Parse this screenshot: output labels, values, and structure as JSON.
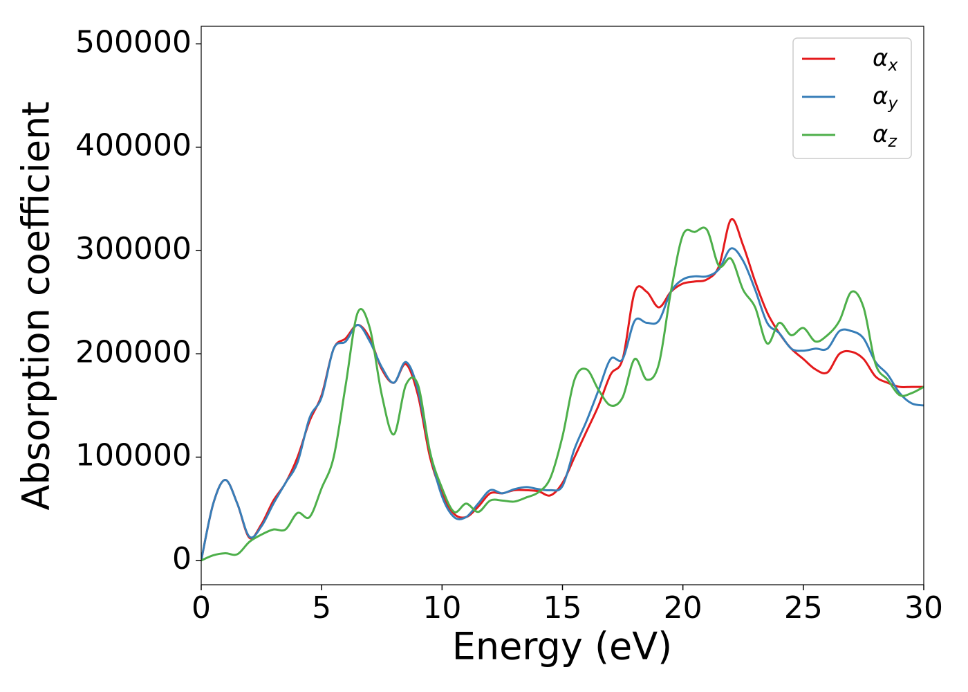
{
  "chart_data": {
    "type": "line",
    "xlabel": "Energy (eV)",
    "ylabel": "Absorption coefficient",
    "xlim": [
      0,
      30
    ],
    "ylim": [
      -23500,
      517000
    ],
    "xticks": [
      0,
      5,
      10,
      15,
      20,
      25,
      30
    ],
    "yticks": [
      0,
      100000,
      200000,
      300000,
      400000,
      500000
    ],
    "legend": "upper right",
    "x": [
      0,
      0.5,
      1,
      1.5,
      2,
      2.5,
      3,
      3.5,
      4,
      4.5,
      5,
      5.5,
      6,
      6.5,
      7,
      7.5,
      8,
      8.5,
      9,
      9.5,
      10,
      10.5,
      11,
      11.5,
      12,
      12.5,
      13,
      13.5,
      14,
      14.5,
      15,
      15.5,
      16,
      16.5,
      17,
      17.5,
      18,
      18.5,
      19,
      19.5,
      20,
      20.5,
      21,
      21.5,
      22,
      22.5,
      23,
      23.5,
      24,
      24.5,
      25,
      25.5,
      26,
      26.5,
      27,
      27.5,
      28,
      28.5,
      29,
      29.5,
      30
    ],
    "series": [
      {
        "name": "αx",
        "color": "#e41a1c",
        "values": [
          0,
          55000,
          78000,
          55000,
          22000,
          35000,
          58000,
          75000,
          100000,
          135000,
          160000,
          205000,
          215000,
          228000,
          215000,
          185000,
          172000,
          190000,
          160000,
          100000,
          65000,
          45000,
          42000,
          52000,
          65000,
          65000,
          68000,
          68000,
          67000,
          63000,
          75000,
          100000,
          125000,
          150000,
          180000,
          195000,
          260000,
          260000,
          245000,
          260000,
          268000,
          270000,
          272000,
          285000,
          330000,
          305000,
          270000,
          240000,
          220000,
          205000,
          195000,
          185000,
          182000,
          200000,
          202000,
          195000,
          178000,
          172000,
          168000,
          168000,
          168000
        ]
      },
      {
        "name": "αy",
        "color": "#377eb8",
        "values": [
          0,
          55000,
          78000,
          55000,
          23000,
          33000,
          55000,
          75000,
          95000,
          138000,
          158000,
          205000,
          212000,
          228000,
          212000,
          187000,
          172000,
          192000,
          165000,
          105000,
          62000,
          42000,
          42000,
          55000,
          68000,
          65000,
          69000,
          71000,
          69000,
          68000,
          72000,
          108000,
          135000,
          165000,
          195000,
          195000,
          232000,
          230000,
          232000,
          260000,
          272000,
          275000,
          275000,
          282000,
          302000,
          290000,
          262000,
          230000,
          220000,
          205000,
          203000,
          205000,
          205000,
          222000,
          222000,
          215000,
          192000,
          180000,
          162000,
          152000,
          150000
        ]
      },
      {
        "name": "αz",
        "color": "#4daf4a",
        "values": [
          0,
          5000,
          7000,
          6000,
          18000,
          25000,
          30000,
          30000,
          46000,
          42000,
          70000,
          100000,
          170000,
          240000,
          225000,
          160000,
          122000,
          170000,
          170000,
          105000,
          70000,
          47000,
          55000,
          47000,
          58000,
          58000,
          57000,
          61000,
          66000,
          80000,
          120000,
          175000,
          185000,
          165000,
          150000,
          158000,
          195000,
          175000,
          190000,
          260000,
          315000,
          318000,
          320000,
          285000,
          292000,
          262000,
          245000,
          210000,
          230000,
          218000,
          225000,
          212000,
          218000,
          232000,
          260000,
          245000,
          190000,
          175000,
          160000,
          162000,
          168000
        ]
      }
    ]
  }
}
